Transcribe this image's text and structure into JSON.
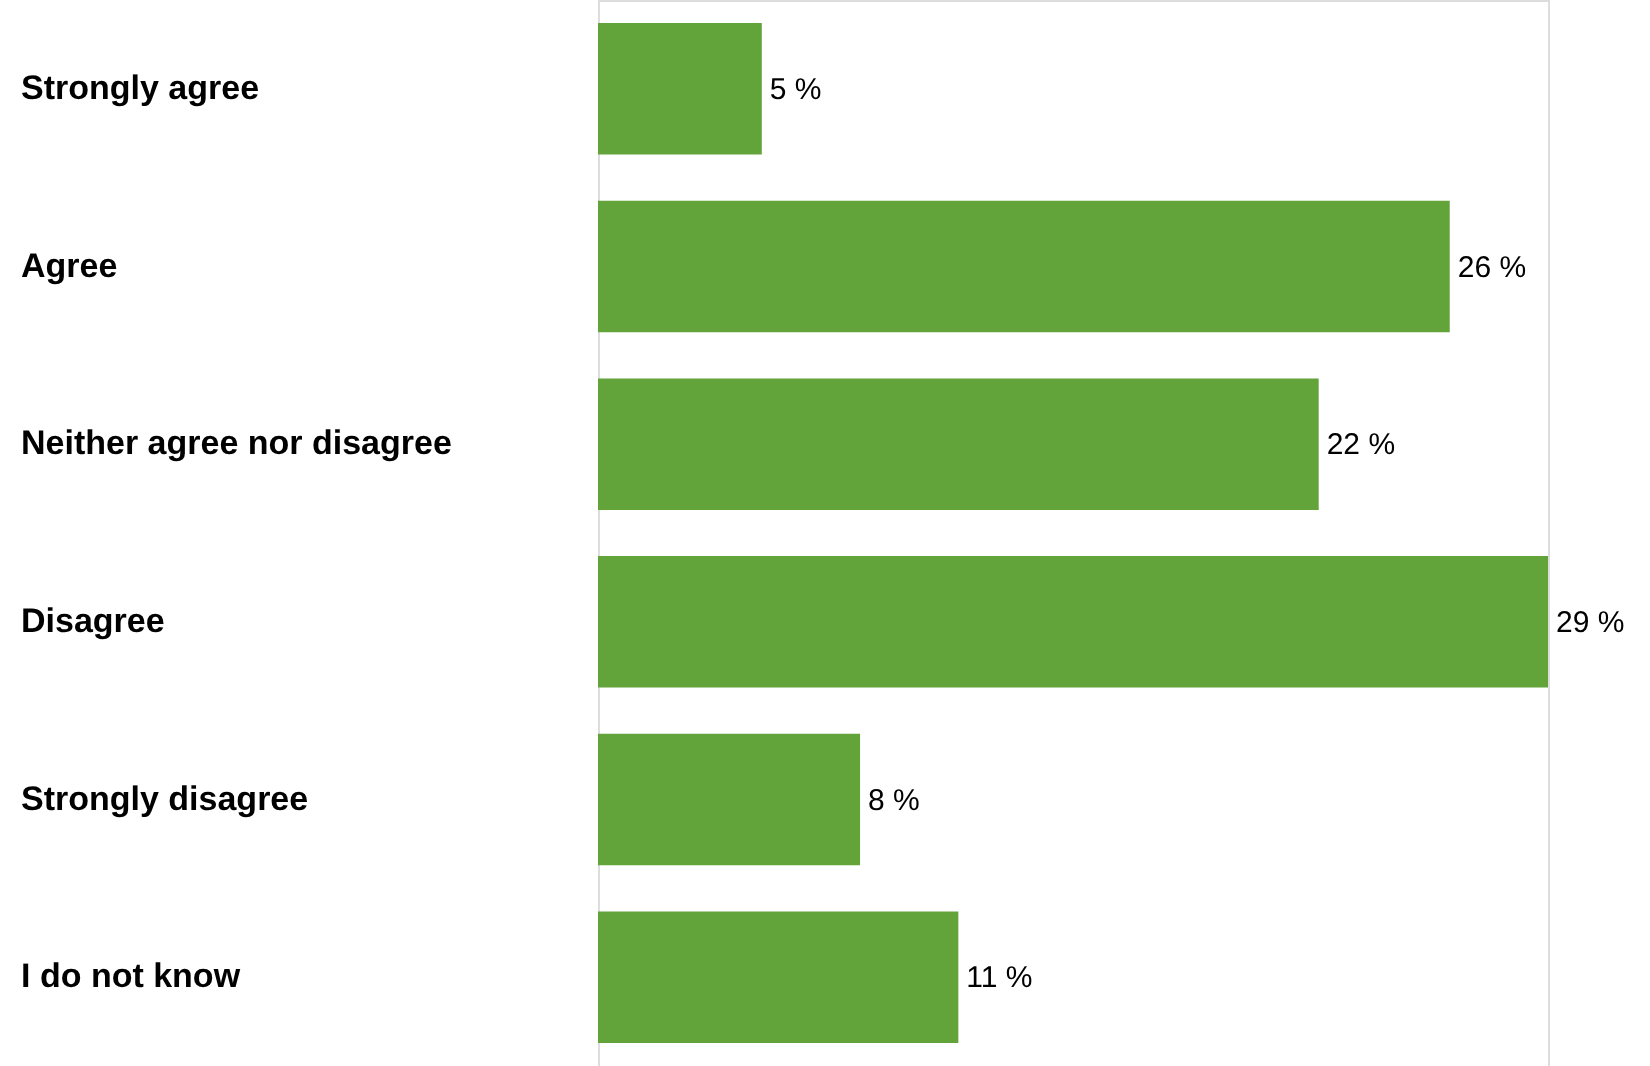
{
  "chart_data": {
    "type": "bar",
    "orientation": "horizontal",
    "categories": [
      "Strongly agree",
      "Agree",
      "Neither agree nor disagree",
      "Disagree",
      "Strongly disagree",
      "I do not know"
    ],
    "values": [
      5,
      26,
      22,
      29,
      8,
      11
    ],
    "value_labels": [
      "5 %",
      "26 %",
      "22 %",
      "29 %",
      "8 %",
      "11 %"
    ],
    "color": "#62a33a",
    "grid": false
  }
}
